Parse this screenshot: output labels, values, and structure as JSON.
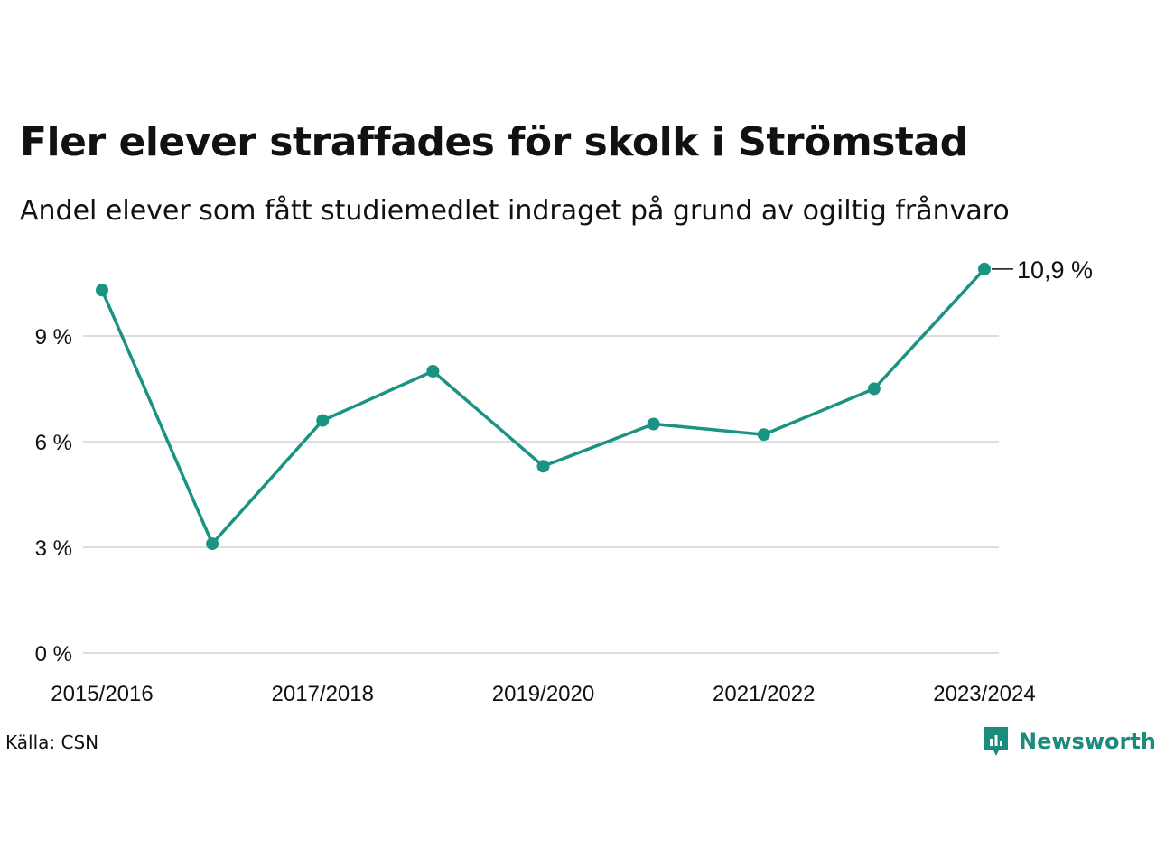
{
  "header": {
    "title": "Fler elever straffades för skolk i Strömstad",
    "subtitle": "Andel elever som fått studiemedlet indraget på grund av ogiltig frånvaro"
  },
  "footer": {
    "source": "Källa: CSN",
    "brand": "Newsworthy"
  },
  "colors": {
    "line": "#1b9383",
    "grid": "#dddde3",
    "brand": "#1b8b7c"
  },
  "chart_data": {
    "type": "line",
    "x": [
      "2015/2016",
      "2016/2017",
      "2017/2018",
      "2018/2019",
      "2019/2020",
      "2020/2021",
      "2021/2022",
      "2022/2023",
      "2023/2024"
    ],
    "x_tick_labels": [
      "2015/2016",
      "2017/2018",
      "2019/2020",
      "2021/2022",
      "2023/2024"
    ],
    "series": [
      {
        "values": [
          10.3,
          3.1,
          6.6,
          8.0,
          5.3,
          6.5,
          6.2,
          7.5,
          10.9
        ]
      }
    ],
    "y_ticks": [
      0,
      3,
      6,
      9
    ],
    "y_tick_labels": [
      "0 %",
      "3 %",
      "6 %",
      "9 %"
    ],
    "ylim": [
      0,
      12
    ],
    "grid": true,
    "end_label": "10,9 %"
  }
}
